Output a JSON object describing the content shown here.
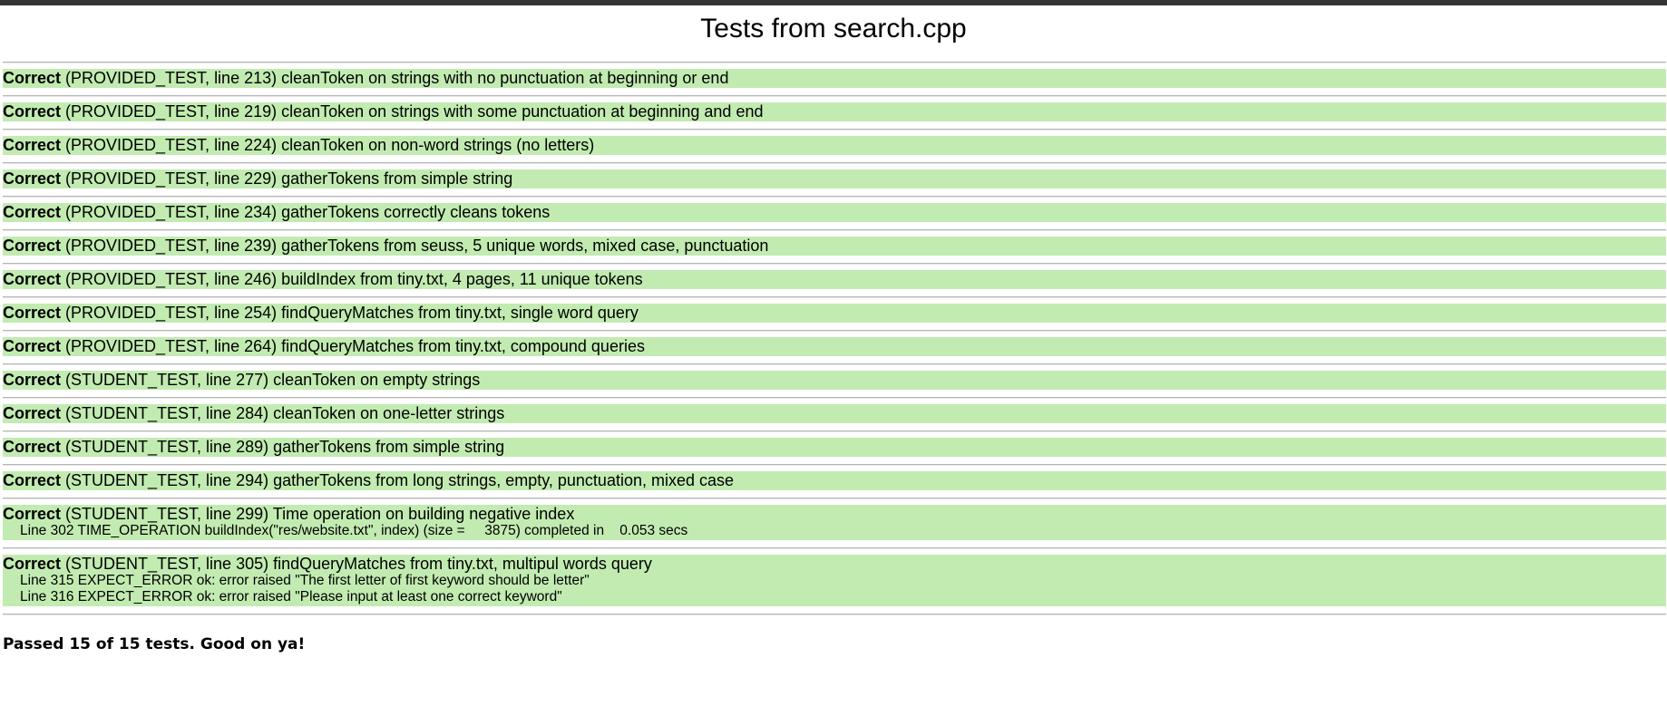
{
  "page": {
    "title": "Tests from search.cpp"
  },
  "tests": [
    {
      "status": "Correct",
      "text": " (PROVIDED_TEST, line 213) cleanToken on strings with no punctuation at beginning or end",
      "details": []
    },
    {
      "status": "Correct",
      "text": " (PROVIDED_TEST, line 219) cleanToken on strings with some punctuation at beginning and end",
      "details": []
    },
    {
      "status": "Correct",
      "text": " (PROVIDED_TEST, line 224) cleanToken on non-word strings (no letters)",
      "details": []
    },
    {
      "status": "Correct",
      "text": " (PROVIDED_TEST, line 229) gatherTokens from simple string",
      "details": []
    },
    {
      "status": "Correct",
      "text": " (PROVIDED_TEST, line 234) gatherTokens correctly cleans tokens",
      "details": []
    },
    {
      "status": "Correct",
      "text": " (PROVIDED_TEST, line 239) gatherTokens from seuss, 5 unique words, mixed case, punctuation",
      "details": []
    },
    {
      "status": "Correct",
      "text": " (PROVIDED_TEST, line 246) buildIndex from tiny.txt, 4 pages, 11 unique tokens",
      "details": []
    },
    {
      "status": "Correct",
      "text": " (PROVIDED_TEST, line 254) findQueryMatches from tiny.txt, single word query",
      "details": []
    },
    {
      "status": "Correct",
      "text": " (PROVIDED_TEST, line 264) findQueryMatches from tiny.txt, compound queries",
      "details": []
    },
    {
      "status": "Correct",
      "text": " (STUDENT_TEST, line 277) cleanToken on empty strings",
      "details": []
    },
    {
      "status": "Correct",
      "text": " (STUDENT_TEST, line 284) cleanToken on one-letter strings",
      "details": []
    },
    {
      "status": "Correct",
      "text": " (STUDENT_TEST, line 289) gatherTokens from simple string",
      "details": []
    },
    {
      "status": "Correct",
      "text": " (STUDENT_TEST, line 294) gatherTokens from long strings, empty, punctuation, mixed case",
      "details": []
    },
    {
      "status": "Correct",
      "text": " (STUDENT_TEST, line 299) Time operation on building negative index",
      "details": [
        "Line 302 TIME_OPERATION buildIndex(\"res/website.txt\", index) (size =     3875) completed in    0.053 secs"
      ]
    },
    {
      "status": "Correct",
      "text": " (STUDENT_TEST, line 305) findQueryMatches from tiny.txt, multipul words query",
      "details": [
        "Line 315 EXPECT_ERROR ok: error raised \"The first letter of first keyword should be letter\"",
        "Line 316 EXPECT_ERROR ok: error raised \"Please input at least one correct keyword\""
      ]
    }
  ],
  "summary": "Passed 15 of 15 tests. Good on ya!",
  "colors": {
    "pass_background": "#c2ebb1",
    "top_bar": "#353535"
  }
}
